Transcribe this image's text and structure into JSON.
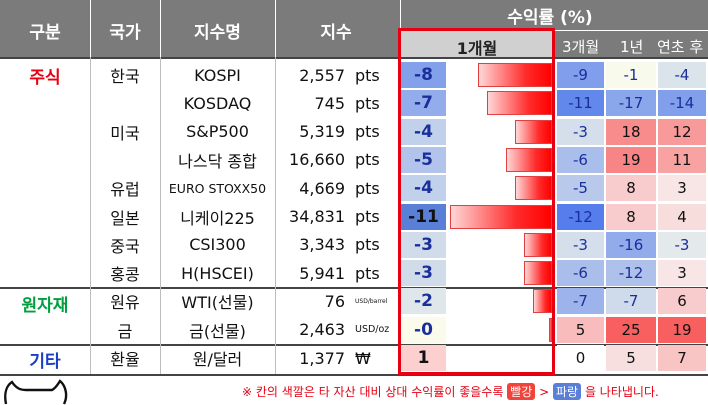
{
  "header": {
    "category": "구분",
    "country": "국가",
    "index_name": "지수명",
    "index_value": "지수",
    "return_title": "수익률 (%)",
    "col_1m": "1개월",
    "col_3m": "3개월",
    "col_1y": "1년",
    "col_ytd": "연초 후"
  },
  "categories": [
    "주식",
    "원자재",
    "기타"
  ],
  "rows": [
    {
      "country": "한국",
      "name": "KOSPI",
      "value": "2,557",
      "unit": "pts",
      "r1m": "-8",
      "r3m": "-9",
      "r1y": "-1",
      "rytd": "-4"
    },
    {
      "country": "",
      "name": "KOSDAQ",
      "value": "745",
      "unit": "pts",
      "r1m": "-7",
      "r3m": "-11",
      "r1y": "-17",
      "rytd": "-14"
    },
    {
      "country": "미국",
      "name": "S&P500",
      "value": "5,319",
      "unit": "pts",
      "r1m": "-4",
      "r3m": "-3",
      "r1y": "18",
      "rytd": "12"
    },
    {
      "country": "",
      "name": "나스닥 종합",
      "value": "16,660",
      "unit": "pts",
      "r1m": "-5",
      "r3m": "-6",
      "r1y": "19",
      "rytd": "11"
    },
    {
      "country": "유럽",
      "name": "EURO STOXX50",
      "value": "4,669",
      "unit": "pts",
      "r1m": "-4",
      "r3m": "-5",
      "r1y": "8",
      "rytd": "3"
    },
    {
      "country": "일본",
      "name": "니케이225",
      "value": "34,831",
      "unit": "pts",
      "r1m": "-11",
      "r3m": "-12",
      "r1y": "8",
      "rytd": "4"
    },
    {
      "country": "중국",
      "name": "CSI300",
      "value": "3,343",
      "unit": "pts",
      "r1m": "-3",
      "r3m": "-3",
      "r1y": "-16",
      "rytd": "-3"
    },
    {
      "country": "홍콩",
      "name": "H(HSCEI)",
      "value": "5,941",
      "unit": "pts",
      "r1m": "-3",
      "r3m": "-6",
      "r1y": "-12",
      "rytd": "3"
    },
    {
      "country": "원유",
      "name": "WTI(선물)",
      "value": "76",
      "unit": "USD/barrel",
      "r1m": "-2",
      "r3m": "-7",
      "r1y": "-7",
      "rytd": "6"
    },
    {
      "country": "금",
      "name": "금(선물)",
      "value": "2,463",
      "unit": "USD/oz",
      "r1m": "-0",
      "r3m": "5",
      "r1y": "25",
      "rytd": "19"
    },
    {
      "country": "환율",
      "name": "원/달러",
      "value": "1,377",
      "unit": "₩",
      "r1m": "1",
      "r3m": "0",
      "r1y": "5",
      "rytd": "7"
    }
  ],
  "bar_values_1m": [
    -8,
    -7,
    -4,
    -5,
    -4,
    -11,
    -3,
    -3,
    -2,
    -0.3,
    1
  ],
  "heat_3m": [
    -9,
    -11,
    -3,
    -6,
    -5,
    -12,
    -3,
    -6,
    -7,
    5,
    0
  ],
  "heat_1y": [
    -1,
    -17,
    18,
    19,
    8,
    8,
    -16,
    -12,
    -7,
    25,
    5
  ],
  "heat_ytd": [
    -4,
    -14,
    12,
    11,
    3,
    4,
    -3,
    3,
    6,
    19,
    7
  ],
  "colors": {
    "header_bg": "#7b7b7b",
    "stock_red": "#e60012",
    "commodity_green": "#00a040",
    "other_blue": "#1a3fc4",
    "highlight_border": "#e60012",
    "neg_blue": "#5a7fd6",
    "pos_red": "#f86b6b"
  },
  "footnote": {
    "text": "※ 칸의 색깔은 타 자산 대비 상대 수익률이 좋을수록",
    "red_word": "빨강",
    "arrow": ">",
    "blue_word": "파랑",
    "tail": "을 나타냅니다."
  }
}
